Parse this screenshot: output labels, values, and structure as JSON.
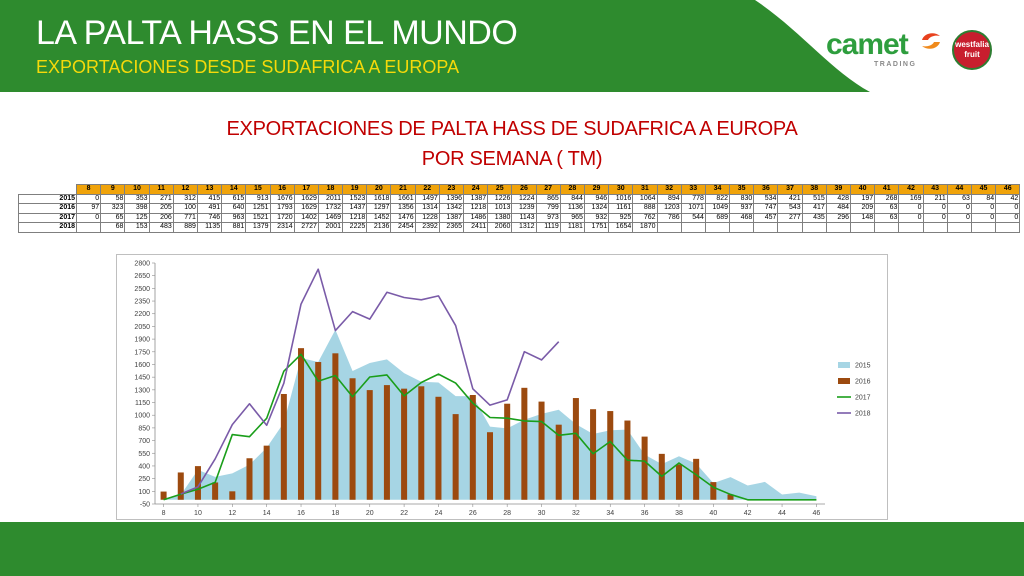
{
  "header": {
    "title": "LA PALTA HASS EN EL MUNDO",
    "subtitle": "EXPORTACIONES DESDE SUDAFRICA A EUROPA",
    "logo_camet": "camet",
    "logo_trading": "TRADING",
    "logo_westfalia": "westfalia fruit",
    "colors": {
      "green": "#2e8b2e",
      "yellow": "#f5d90a",
      "title_red": "#c00000"
    }
  },
  "title_line1": "EXPORTACIONES DE PALTA HASS DE SUDAFRICA A EUROPA",
  "title_line2": "POR SEMANA ( TM)",
  "table": {
    "weeks": [
      "8",
      "9",
      "10",
      "11",
      "12",
      "13",
      "14",
      "15",
      "16",
      "17",
      "18",
      "19",
      "20",
      "21",
      "22",
      "23",
      "24",
      "25",
      "26",
      "27",
      "28",
      "29",
      "30",
      "31",
      "32",
      "33",
      "34",
      "35",
      "36",
      "37",
      "38",
      "39",
      "40",
      "41",
      "42",
      "43",
      "44",
      "45",
      "46"
    ],
    "rows": [
      {
        "year": "2015",
        "cells": [
          "0",
          "58",
          "353",
          "271",
          "312",
          "415",
          "615",
          "913",
          "1676",
          "1629",
          "2011",
          "1523",
          "1618",
          "1661",
          "1497",
          "1396",
          "1387",
          "1226",
          "1224",
          "865",
          "844",
          "946",
          "1016",
          "1064",
          "894",
          "778",
          "822",
          "830",
          "534",
          "421",
          "515",
          "428",
          "197",
          "268",
          "169",
          "211",
          "63",
          "84",
          "42"
        ]
      },
      {
        "year": "2016",
        "cells": [
          "97",
          "323",
          "398",
          "205",
          "100",
          "491",
          "640",
          "1251",
          "1793",
          "1629",
          "1732",
          "1437",
          "1297",
          "1356",
          "1314",
          "1342",
          "1218",
          "1013",
          "1239",
          "799",
          "1136",
          "1324",
          "1161",
          "888",
          "1203",
          "1071",
          "1049",
          "937",
          "747",
          "543",
          "417",
          "484",
          "209",
          "63",
          "0",
          "0",
          "0",
          "0",
          "0"
        ]
      },
      {
        "year": "2017",
        "cells": [
          "0",
          "65",
          "125",
          "206",
          "771",
          "746",
          "963",
          "1521",
          "1720",
          "1402",
          "1469",
          "1218",
          "1452",
          "1476",
          "1228",
          "1387",
          "1486",
          "1380",
          "1143",
          "973",
          "965",
          "932",
          "925",
          "762",
          "786",
          "544",
          "689",
          "468",
          "457",
          "277",
          "435",
          "296",
          "148",
          "63",
          "0",
          "0",
          "0",
          "0",
          "0"
        ]
      },
      {
        "year": "2018",
        "cells": [
          "",
          "68",
          "153",
          "483",
          "889",
          "1135",
          "881",
          "1379",
          "2314",
          "2727",
          "2001",
          "2225",
          "2136",
          "2454",
          "2392",
          "2365",
          "2411",
          "2060",
          "1312",
          "1119",
          "1181",
          "1751",
          "1654",
          "1870",
          "",
          "",
          "",
          "",
          "",
          "",
          "",
          "",
          "",
          "",
          "",
          "",
          "",
          "",
          ""
        ]
      }
    ]
  },
  "chart_data": {
    "type": "bar",
    "x": [
      8,
      9,
      10,
      11,
      12,
      13,
      14,
      15,
      16,
      17,
      18,
      19,
      20,
      21,
      22,
      23,
      24,
      25,
      26,
      27,
      28,
      29,
      30,
      31,
      32,
      33,
      34,
      35,
      36,
      37,
      38,
      39,
      40,
      41,
      42,
      43,
      44,
      45,
      46
    ],
    "series": [
      {
        "name": "2015",
        "kind": "area",
        "color": "#a6d5e4",
        "values": [
          0,
          58,
          353,
          271,
          312,
          415,
          615,
          913,
          1676,
          1629,
          2011,
          1523,
          1618,
          1661,
          1497,
          1396,
          1387,
          1226,
          1224,
          865,
          844,
          946,
          1016,
          1064,
          894,
          778,
          822,
          830,
          534,
          421,
          515,
          428,
          197,
          268,
          169,
          211,
          63,
          84,
          42
        ]
      },
      {
        "name": "2016",
        "kind": "bar",
        "color": "#9c4a0f",
        "values": [
          97,
          323,
          398,
          205,
          100,
          491,
          640,
          1251,
          1793,
          1629,
          1732,
          1437,
          1297,
          1356,
          1314,
          1342,
          1218,
          1013,
          1239,
          799,
          1136,
          1324,
          1161,
          888,
          1203,
          1071,
          1049,
          937,
          747,
          543,
          417,
          484,
          209,
          63,
          0,
          0,
          0,
          0,
          0
        ]
      },
      {
        "name": "2017",
        "kind": "line",
        "color": "#1a9e1a",
        "values": [
          0,
          65,
          125,
          206,
          771,
          746,
          963,
          1521,
          1720,
          1402,
          1469,
          1218,
          1452,
          1476,
          1228,
          1387,
          1486,
          1380,
          1143,
          973,
          965,
          932,
          925,
          762,
          786,
          544,
          689,
          468,
          457,
          277,
          435,
          296,
          148,
          63,
          0,
          0,
          0,
          0,
          0
        ]
      },
      {
        "name": "2018",
        "kind": "line",
        "color": "#7a5ba8",
        "values": [
          null,
          68,
          153,
          483,
          889,
          1135,
          881,
          1379,
          2314,
          2727,
          2001,
          2225,
          2136,
          2454,
          2392,
          2365,
          2411,
          2060,
          1312,
          1119,
          1181,
          1751,
          1654,
          1870,
          null,
          null,
          null,
          null,
          null,
          null,
          null,
          null,
          null,
          null,
          null,
          null,
          null,
          null,
          null
        ]
      }
    ],
    "ylim": [
      -50,
      2800
    ],
    "yticks": [
      -50,
      100,
      250,
      400,
      550,
      700,
      850,
      1000,
      1150,
      1300,
      1450,
      1600,
      1750,
      1900,
      2050,
      2200,
      2350,
      2500,
      2650,
      2800
    ],
    "xticks": [
      8,
      10,
      12,
      14,
      16,
      18,
      20,
      22,
      24,
      26,
      28,
      30,
      32,
      34,
      36,
      38,
      40,
      42,
      44,
      46
    ],
    "xlim": [
      7.5,
      46.5
    ],
    "legend_position": "right",
    "grid": false
  }
}
